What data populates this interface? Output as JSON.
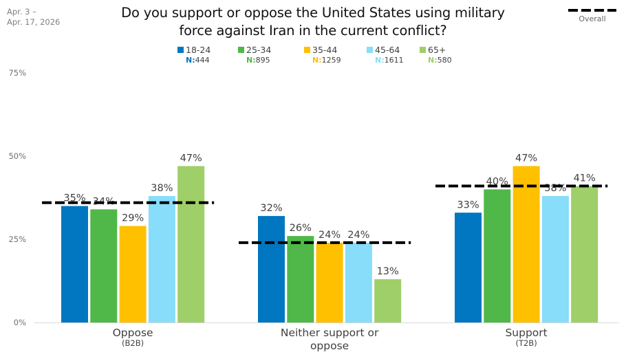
{
  "date_range": [
    "Apr. 3 –",
    "Apr. 17, 2026"
  ],
  "overall_legend_label": "Overall",
  "chart_data": {
    "type": "bar",
    "title": "Do you support or oppose the United States using military force against Iran in the current conflict?",
    "title_lines": [
      "Do you support or oppose the United States using military",
      "force against Iran in the current conflict?"
    ],
    "xlabel": "",
    "ylabel": "",
    "ylim": [
      0,
      75
    ],
    "yticks": [
      0,
      25,
      50,
      75
    ],
    "ytick_labels": [
      "0%",
      "25%",
      "50%",
      "75%"
    ],
    "grid": false,
    "legend_position": "top",
    "categories": [
      "Oppose",
      "Neither support or oppose",
      "Support"
    ],
    "category_labels": [
      {
        "lines": [
          "Oppose"
        ],
        "sub": "(B2B)"
      },
      {
        "lines": [
          "Neither support or",
          "oppose"
        ],
        "sub": ""
      },
      {
        "lines": [
          "Support"
        ],
        "sub": "(T2B)"
      }
    ],
    "series": [
      {
        "name": "18-24",
        "n_label": "N:",
        "n": "444",
        "color": "#0077C0",
        "values": [
          35,
          32,
          33
        ]
      },
      {
        "name": "25-34",
        "n_label": "N:",
        "n": "895",
        "color": "#50B848",
        "values": [
          34,
          26,
          40
        ]
      },
      {
        "name": "35-44",
        "n_label": "N:",
        "n": "1259",
        "color": "#FFC000",
        "values": [
          29,
          24,
          47
        ]
      },
      {
        "name": "45-64",
        "n_label": "N:",
        "n": "1611",
        "color": "#87DDFA",
        "values": [
          38,
          24,
          38
        ]
      },
      {
        "name": "65+",
        "n_label": "N:",
        "n": "580",
        "color": "#9ECF68",
        "values": [
          47,
          13,
          41
        ]
      }
    ],
    "data_labels": [
      [
        "35%",
        "32%",
        "33%"
      ],
      [
        "34%",
        "26%",
        "40%"
      ],
      [
        "29%",
        "24%",
        "47%"
      ],
      [
        "38%",
        "24%",
        "38%"
      ],
      [
        "47%",
        "13%",
        "41%"
      ]
    ],
    "overall": {
      "name": "Overall",
      "values": [
        36,
        24,
        41
      ],
      "color": "#000000"
    }
  }
}
